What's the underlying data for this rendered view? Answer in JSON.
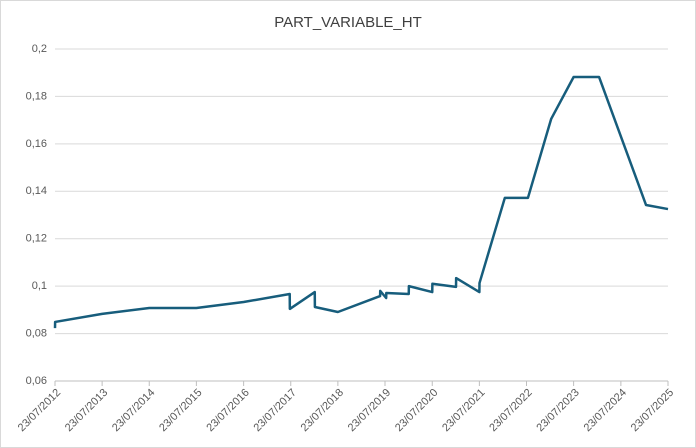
{
  "chart_data": {
    "type": "line",
    "title": "PART_VARIABLE_HT",
    "x": [
      "2012-07-23",
      "2012-07-24",
      "2013-07-23",
      "2014-07-23",
      "2015-07-23",
      "2016-07-23",
      "2017-07-15",
      "2017-07-16",
      "2018-01-25",
      "2018-01-26",
      "2018-07-23",
      "2019-06-15",
      "2019-06-16",
      "2019-08-01",
      "2019-08-02",
      "2020-01-23",
      "2020-01-24",
      "2020-07-23",
      "2020-07-24",
      "2021-01-23",
      "2021-01-24",
      "2021-07-23",
      "2021-07-24",
      "2022-02-05",
      "2022-08-03",
      "2023-01-30",
      "2023-07-23",
      "2024-02-05",
      "2025-02-03",
      "2025-07-23"
    ],
    "series": [
      {
        "name": "PART_VARIABLE_HT",
        "color": "#175d7c",
        "values": [
          0.0823,
          0.0849,
          0.0883,
          0.0908,
          0.0908,
          0.0933,
          0.0967,
          0.0904,
          0.0975,
          0.0912,
          0.0891,
          0.0958,
          0.098,
          0.095,
          0.0971,
          0.0967,
          0.1,
          0.0975,
          0.101,
          0.0997,
          0.1034,
          0.0975,
          0.1013,
          0.1372,
          0.1372,
          0.1705,
          0.1882,
          0.1882,
          0.1342,
          0.1325
        ]
      }
    ],
    "xlim": [
      "2012-07-23",
      "2025-07-23"
    ],
    "xticks": [
      {
        "value": "2012-07-23",
        "label": "23/07/2012"
      },
      {
        "value": "2013-07-23",
        "label": "23/07/2013"
      },
      {
        "value": "2014-07-23",
        "label": "23/07/2014"
      },
      {
        "value": "2015-07-23",
        "label": "23/07/2015"
      },
      {
        "value": "2016-07-23",
        "label": "23/07/2016"
      },
      {
        "value": "2017-07-23",
        "label": "23/07/2017"
      },
      {
        "value": "2018-07-23",
        "label": "23/07/2018"
      },
      {
        "value": "2019-07-23",
        "label": "23/07/2019"
      },
      {
        "value": "2020-07-23",
        "label": "23/07/2020"
      },
      {
        "value": "2021-07-23",
        "label": "23/07/2021"
      },
      {
        "value": "2022-07-23",
        "label": "23/07/2022"
      },
      {
        "value": "2023-07-23",
        "label": "23/07/2023"
      },
      {
        "value": "2024-07-23",
        "label": "23/07/2024"
      },
      {
        "value": "2025-07-23",
        "label": "23/07/2025"
      }
    ],
    "ylim": [
      0.06,
      0.2
    ],
    "yticks": [
      {
        "value": 0.06,
        "label": "0,06"
      },
      {
        "value": 0.08,
        "label": "0,08"
      },
      {
        "value": 0.1,
        "label": "0,1"
      },
      {
        "value": 0.12,
        "label": "0,12"
      },
      {
        "value": 0.14,
        "label": "0,14"
      },
      {
        "value": 0.16,
        "label": "0,16"
      },
      {
        "value": 0.18,
        "label": "0,18"
      },
      {
        "value": 0.2,
        "label": "0,2"
      }
    ],
    "grid": true
  }
}
